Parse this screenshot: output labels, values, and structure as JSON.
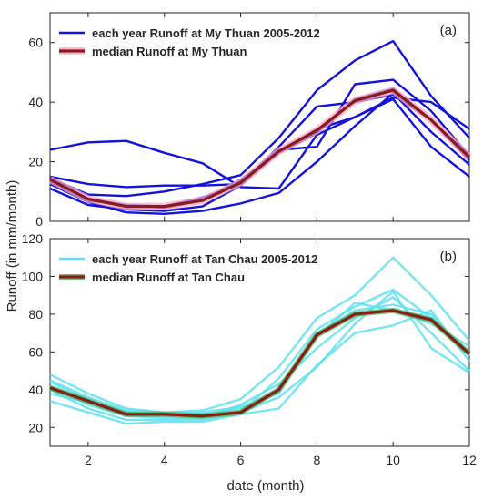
{
  "figure": {
    "shared_ylabel": "Runoff (in mm/month)",
    "shared_xlabel": "date (month)"
  },
  "chart_data": [
    {
      "type": "line",
      "panel_label": "(a)",
      "xlim": [
        1,
        12
      ],
      "ylim": [
        0,
        70
      ],
      "yticks": [
        0,
        20,
        40,
        60
      ],
      "xticks": [],
      "series_colors": {
        "yearly": "#1414d8",
        "median": "#8b1a1a",
        "median_glow": "#f5a8c8"
      },
      "legend": [
        {
          "label": "each year Runoff at My Thuan 2005-2012",
          "role": "yearly"
        },
        {
          "label": "median Runoff at My Thuan",
          "role": "median"
        }
      ],
      "legend_position": "top-left",
      "x": [
        1,
        2,
        3,
        4,
        5,
        6,
        7,
        8,
        9,
        10,
        11,
        12
      ],
      "yearly_series": [
        [
          24,
          26.5,
          27,
          23,
          19.5,
          11.5,
          11,
          29,
          35,
          41,
          25,
          15
        ],
        [
          15,
          12.5,
          11.5,
          12,
          12,
          12.5,
          23,
          31,
          35,
          41.5,
          40,
          31
        ],
        [
          14.5,
          9,
          8.5,
          10,
          12.5,
          15.5,
          28,
          44,
          54,
          60.5,
          42,
          28
        ],
        [
          13.5,
          7.5,
          5.5,
          5,
          8,
          12.5,
          25,
          38.5,
          40,
          42.5,
          34,
          20.5
        ],
        [
          12.5,
          6.5,
          3,
          2.5,
          3.5,
          6,
          9.5,
          20,
          32,
          43,
          30,
          19
        ],
        [
          11,
          5.5,
          4,
          3.5,
          5,
          12,
          24,
          25,
          46,
          47.5,
          37,
          22
        ],
        [
          13,
          7,
          5.5,
          4.5,
          7,
          14,
          23,
          29.5,
          41,
          44.5,
          34,
          21.5
        ]
      ],
      "median": [
        14,
        7.5,
        5,
        5,
        7,
        13,
        23.5,
        30.5,
        40.5,
        44,
        34,
        21.5
      ]
    },
    {
      "type": "line",
      "panel_label": "(b)",
      "xlim": [
        1,
        12
      ],
      "ylim": [
        10,
        120
      ],
      "yticks": [
        20,
        40,
        60,
        80,
        100,
        120
      ],
      "xticks": [
        2,
        4,
        6,
        8,
        10,
        12
      ],
      "series_colors": {
        "yearly": "#5ee0f0",
        "median": "#8b1a1a",
        "median_glow": "#43b04a"
      },
      "legend": [
        {
          "label": "each year Runoff at Tan Chau 2005-2012",
          "role": "yearly"
        },
        {
          "label": "median Runoff at Tan Chau",
          "role": "median"
        }
      ],
      "legend_position": "top-left",
      "x": [
        1,
        2,
        3,
        4,
        5,
        6,
        7,
        8,
        9,
        10,
        11,
        12
      ],
      "yearly_series": [
        [
          48,
          38,
          30,
          28,
          29,
          35,
          52,
          78,
          90,
          110,
          90,
          66
        ],
        [
          34,
          28,
          22,
          23,
          23,
          27,
          30,
          53,
          70,
          74,
          82,
          55
        ],
        [
          44,
          35,
          28,
          27,
          26,
          28,
          46,
          72,
          84,
          93,
          78,
          60
        ],
        [
          42,
          32,
          26,
          25,
          25,
          32,
          43,
          62,
          78,
          89,
          70,
          50
        ],
        [
          40,
          30,
          24,
          24,
          24,
          28,
          36,
          52,
          75,
          92,
          62,
          49
        ],
        [
          38,
          33,
          27,
          26,
          27,
          30,
          40,
          68,
          86,
          82,
          75,
          63
        ],
        [
          45,
          36,
          29,
          28,
          28,
          31,
          38,
          70,
          82,
          85,
          80,
          58
        ]
      ],
      "median": [
        41,
        34,
        27,
        27,
        26,
        28,
        40,
        69,
        80,
        82,
        77,
        59
      ]
    }
  ]
}
